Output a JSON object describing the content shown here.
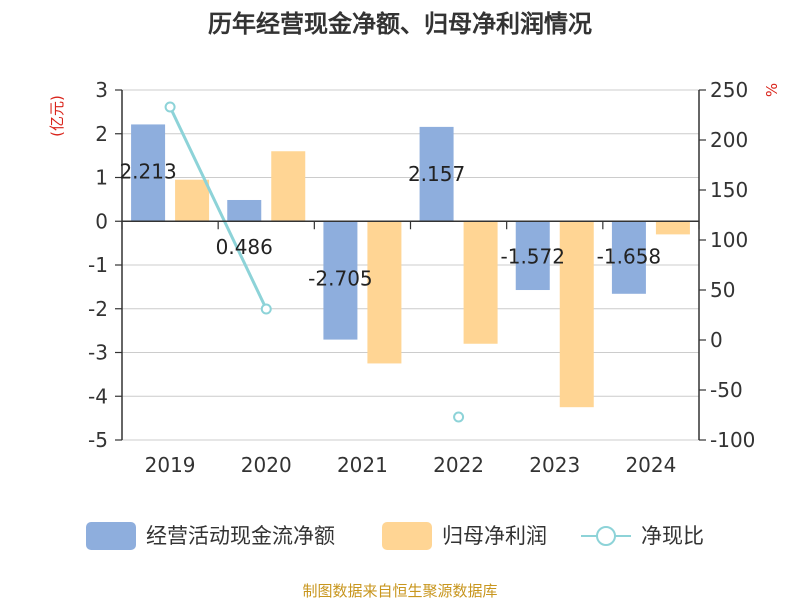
{
  "chart_data": {
    "type": "bar",
    "title": "历年经营现金净额、归母净利润情况",
    "categories": [
      "2019",
      "2020",
      "2021",
      "2022",
      "2023",
      "2024"
    ],
    "y_left": {
      "unit": "(亿元)",
      "ylim": [
        -5,
        3
      ],
      "ticks": [
        3,
        2,
        1,
        0,
        -1,
        -2,
        -3,
        -4,
        -5
      ]
    },
    "y_right": {
      "unit": "%",
      "ylim": [
        -100,
        250
      ],
      "ticks": [
        250,
        200,
        150,
        100,
        50,
        0,
        -50,
        -100
      ]
    },
    "series": [
      {
        "name": "经营活动现金流净额",
        "type": "bar",
        "axis": "left",
        "color": "#8eaedd",
        "values": [
          2.213,
          0.486,
          -2.705,
          2.157,
          -1.572,
          -1.658
        ],
        "labels": [
          "2.213",
          "0.486",
          "-2.705",
          "2.157",
          "-1.572",
          "-1.658"
        ]
      },
      {
        "name": "归母净利润",
        "type": "bar",
        "axis": "left",
        "color": "#ffd594",
        "values": [
          0.95,
          1.6,
          -3.25,
          -2.8,
          -4.25,
          -0.3
        ]
      },
      {
        "name": "净现比",
        "type": "line",
        "axis": "right",
        "color": "#8dd3d8",
        "values": [
          233,
          31,
          null,
          -77,
          null,
          null
        ]
      }
    ],
    "grid": true
  },
  "source": "制图数据来自恒生聚源数据库"
}
